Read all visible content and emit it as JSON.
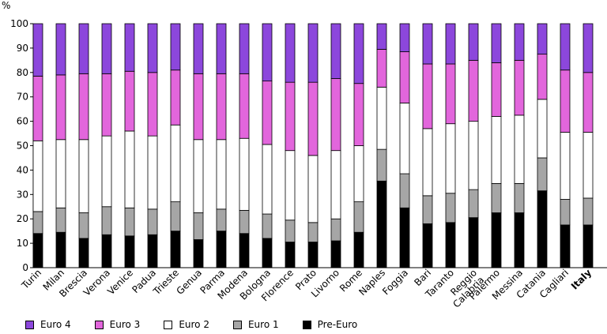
{
  "chart_data": {
    "type": "bar",
    "stacked": true,
    "ylabel": "%",
    "ylim": [
      0,
      100
    ],
    "yticks": [
      0,
      10,
      20,
      30,
      40,
      50,
      60,
      70,
      80,
      90,
      100
    ],
    "grid": false,
    "legend_position": "bottom",
    "categories": [
      "Turin",
      "Milan",
      "Brescia",
      "Verona",
      "Venice",
      "Padua",
      "Trieste",
      "Genua",
      "Parma",
      "Modena",
      "Bologna",
      "Florence",
      "Prato",
      "Livorno",
      "Rome",
      "Naples",
      "Foggia",
      "Bari",
      "Taranto",
      "Reggio Calabria",
      "Palermo",
      "Messina",
      "Catania",
      "Cagliari",
      "Italy"
    ],
    "bold_category": "Italy",
    "series": [
      {
        "name": "Pre-Euro",
        "color": "#000000",
        "values": [
          14,
          14.5,
          12,
          13.5,
          13,
          13.5,
          15,
          11.5,
          15,
          14,
          12,
          10.5,
          10.5,
          11,
          14.5,
          35.5,
          24.5,
          18,
          18.5,
          20.5,
          22.5,
          22.5,
          31.5,
          17.5,
          17.5
        ]
      },
      {
        "name": "Euro 1",
        "color": "#a6a6a6",
        "values": [
          9,
          10,
          10.5,
          11.5,
          11.5,
          10.5,
          12,
          11,
          9,
          9.5,
          10,
          9,
          8,
          9,
          12.5,
          13,
          14,
          11.5,
          12,
          11.5,
          12,
          12,
          13.5,
          10.5,
          11
        ]
      },
      {
        "name": "Euro 2",
        "color": "#ffffff",
        "values": [
          29,
          28,
          30,
          29,
          31.5,
          30,
          31.5,
          30,
          28.5,
          29.5,
          28.5,
          28.5,
          27.5,
          28,
          23,
          25.5,
          29,
          27.5,
          28.5,
          28,
          27.5,
          28,
          24,
          27.5,
          27
        ]
      },
      {
        "name": "Euro 3",
        "color": "#e266dc",
        "values": [
          26.5,
          26.5,
          27,
          25.5,
          24.5,
          26,
          22.5,
          27,
          27,
          26.5,
          26,
          28,
          30,
          29.5,
          25.5,
          15.5,
          21,
          26.5,
          24.5,
          25,
          22,
          22.5,
          18.5,
          25.5,
          24.5
        ]
      },
      {
        "name": "Euro 4",
        "color": "#8c47dc",
        "values": [
          21.5,
          21,
          20.5,
          20.5,
          19.5,
          20,
          19,
          20.5,
          20.5,
          20.5,
          23.5,
          24,
          24,
          22.5,
          24.5,
          10.5,
          11.5,
          16.5,
          16.5,
          15,
          16,
          15,
          12.5,
          19,
          20
        ]
      }
    ],
    "legend_order": [
      "Euro 4",
      "Euro 3",
      "Euro 2",
      "Euro 1",
      "Pre-Euro"
    ]
  }
}
